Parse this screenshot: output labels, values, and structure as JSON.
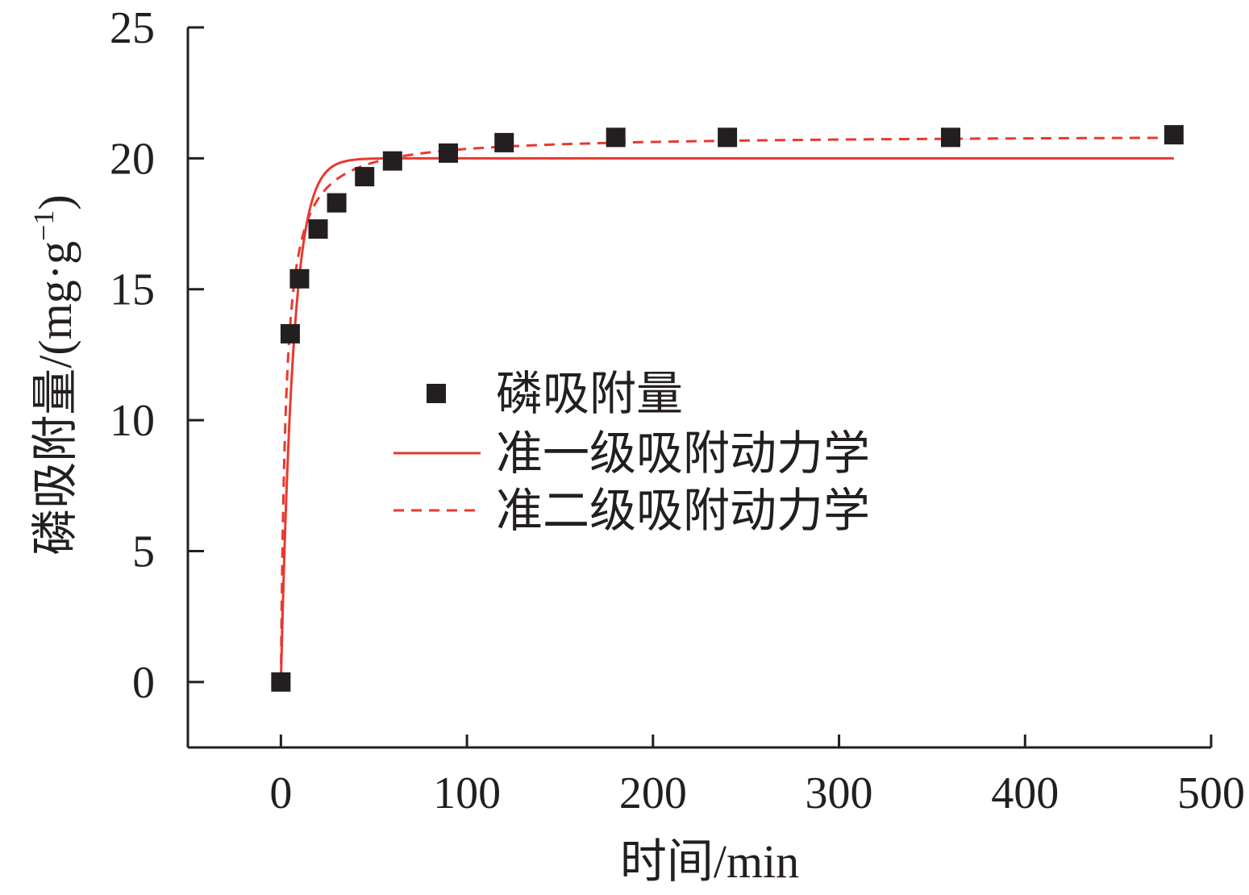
{
  "chart_data": {
    "type": "scatter",
    "xlabel": "时间/min",
    "ylabel_main": "磷吸附量/(mg·g",
    "ylabel_sup": "−1",
    "ylabel_close": ")",
    "xlim": [
      -50,
      500
    ],
    "ylim": [
      -2.5,
      25
    ],
    "x_ticks": [
      0,
      100,
      200,
      300,
      400,
      500
    ],
    "y_ticks": [
      0,
      5,
      10,
      15,
      20,
      25
    ],
    "grid": false,
    "legend_placement": "center",
    "series": [
      {
        "name": "磷吸附量",
        "kind": "scatter",
        "marker": "square",
        "color": "#231f20",
        "x": [
          0,
          5,
          10,
          20,
          30,
          45,
          60,
          90,
          120,
          180,
          240,
          360,
          480
        ],
        "y": [
          0,
          13.3,
          15.4,
          17.3,
          18.3,
          19.3,
          19.9,
          20.2,
          20.6,
          20.8,
          20.8,
          20.8,
          20.9
        ]
      },
      {
        "name": "准一级吸附动力学",
        "kind": "line",
        "style": "solid",
        "color": "#e8392f",
        "model": "pseudo-first-order",
        "qe": 20.0,
        "k": 0.15
      },
      {
        "name": "准二级吸附动力学",
        "kind": "line",
        "style": "dashed",
        "color": "#e8392f",
        "model": "pseudo-second-order",
        "qe": 20.9,
        "k": 0.018
      }
    ]
  }
}
